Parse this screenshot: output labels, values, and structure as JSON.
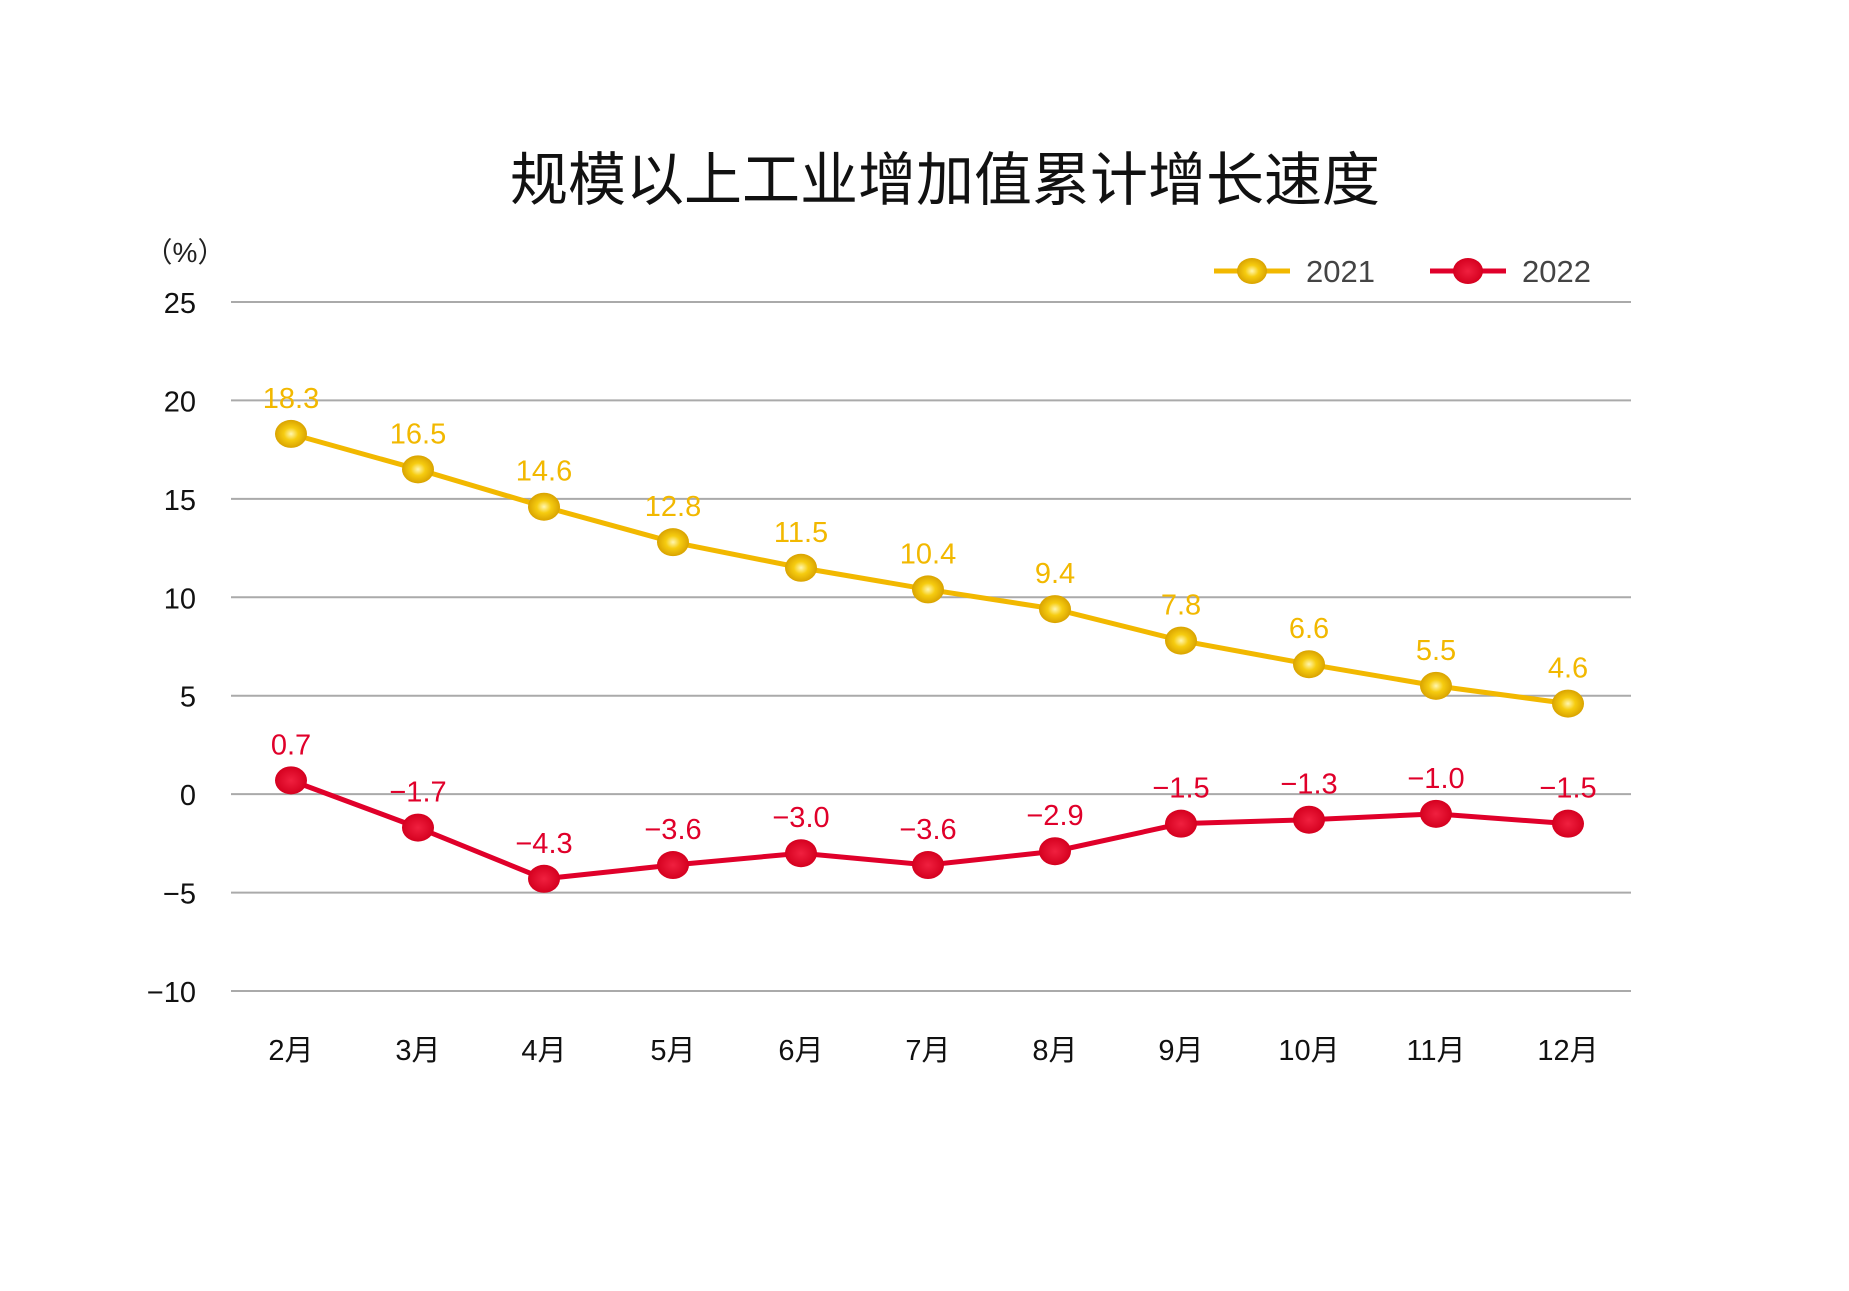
{
  "chart_data": {
    "type": "line",
    "title": "规模以上工业增加值累计增长速度",
    "ylabel": "（%）",
    "ylim": [
      -10,
      25
    ],
    "yticks": [
      25,
      20,
      15,
      10,
      5,
      0,
      -5,
      -10
    ],
    "ytick_labels": [
      "25",
      "20",
      "15",
      "10",
      "5",
      "0",
      "−5",
      "−10"
    ],
    "grid": true,
    "legend_position": "top-right",
    "categories": [
      "2月",
      "3月",
      "4月",
      "5月",
      "6月",
      "7月",
      "8月",
      "9月",
      "10月",
      "11月",
      "12月"
    ],
    "series": [
      {
        "name": "2021",
        "color": "#F2B800",
        "values": [
          18.3,
          16.5,
          14.6,
          12.8,
          11.5,
          10.4,
          9.4,
          7.8,
          6.6,
          5.5,
          4.6
        ],
        "labels": [
          "18.3",
          "16.5",
          "14.6",
          "12.8",
          "11.5",
          "10.4",
          "9.4",
          "7.8",
          "6.6",
          "5.5",
          "4.6"
        ]
      },
      {
        "name": "2022",
        "color": "#E0002A",
        "values": [
          0.7,
          -1.7,
          -4.3,
          -3.6,
          -3.0,
          -3.6,
          -2.9,
          -1.5,
          -1.3,
          -1.0,
          -1.5
        ],
        "labels": [
          "0.7",
          "−1.7",
          "−4.3",
          "−3.6",
          "−3.0",
          "−3.6",
          "−2.9",
          "−1.5",
          "−1.3",
          "−1.0",
          "−1.5"
        ]
      }
    ]
  }
}
